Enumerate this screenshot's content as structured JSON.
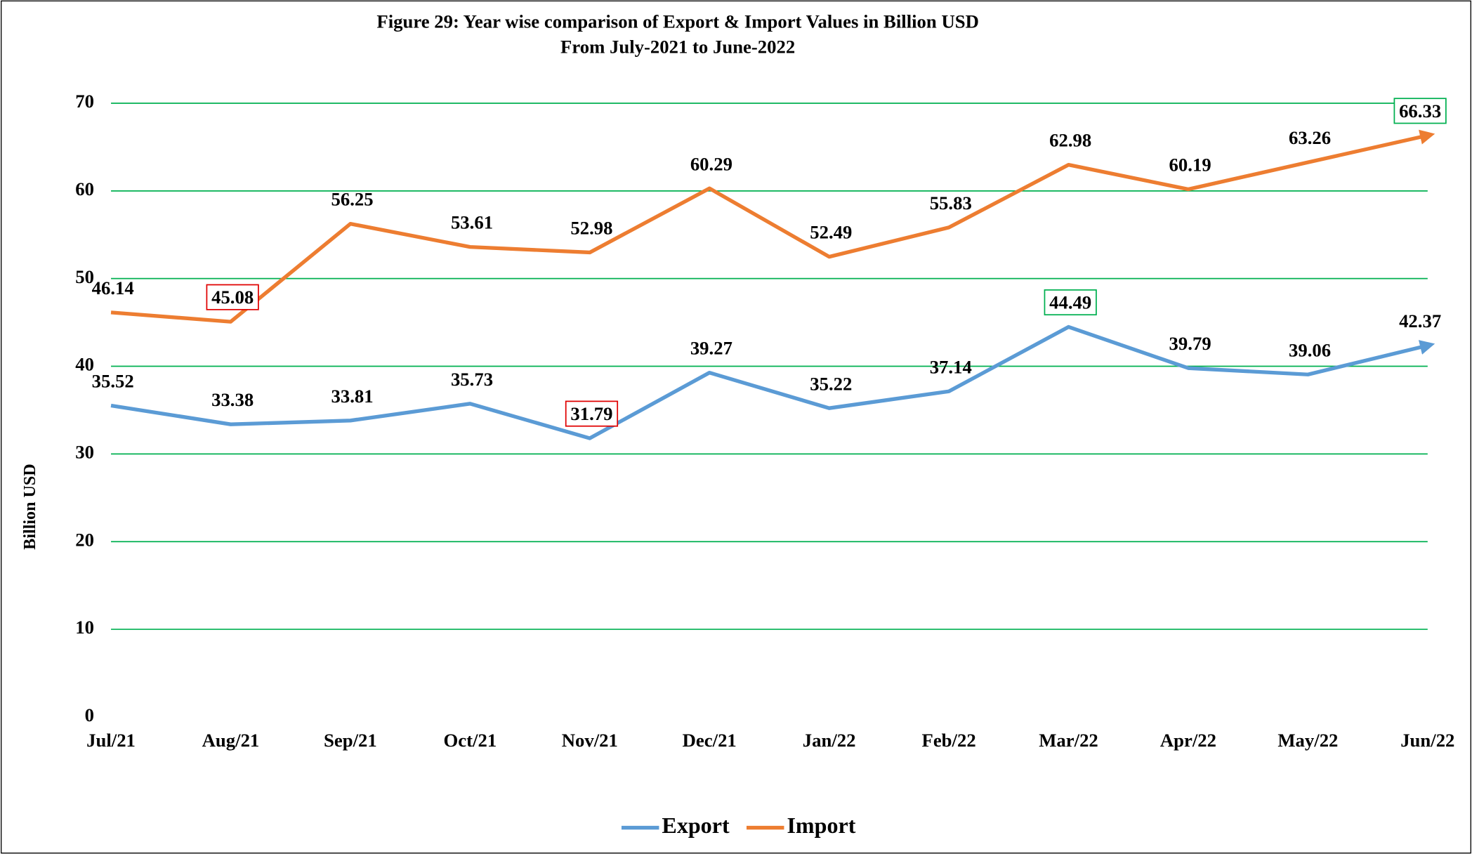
{
  "chart_data": {
    "type": "line",
    "title": "Figure 29: Year wise comparison of Export & Import Values in Billion USD",
    "subtitle": "From July-2021 to June-2022",
    "y_label": "Billion USD",
    "categories": [
      "Jul/21",
      "Aug/21",
      "Sep/21",
      "Oct/21",
      "Nov/21",
      "Dec/21",
      "Jan/22",
      "Feb/22",
      "Mar/22",
      "Apr/22",
      "May/22",
      "Jun/22"
    ],
    "series": [
      {
        "name": "Export",
        "color": "#5b9bd5",
        "legend_color": "#2e75b6",
        "values": [
          35.52,
          33.38,
          33.81,
          35.73,
          31.79,
          39.27,
          35.22,
          37.14,
          44.49,
          39.79,
          39.06,
          42.37
        ]
      },
      {
        "name": "Import",
        "color": "#ed7d31",
        "legend_color": "#e00000",
        "values": [
          46.14,
          45.08,
          56.25,
          53.61,
          52.98,
          60.29,
          52.49,
          55.83,
          62.98,
          60.19,
          63.26,
          66.33
        ]
      }
    ],
    "ylim": [
      0,
      70
    ],
    "yticks": [
      0,
      10,
      20,
      30,
      40,
      50,
      60,
      70
    ],
    "grid": true,
    "grid_color": "#00b050",
    "min_color": "#e00000",
    "max_color": "#00b050",
    "legend": "bottom"
  }
}
